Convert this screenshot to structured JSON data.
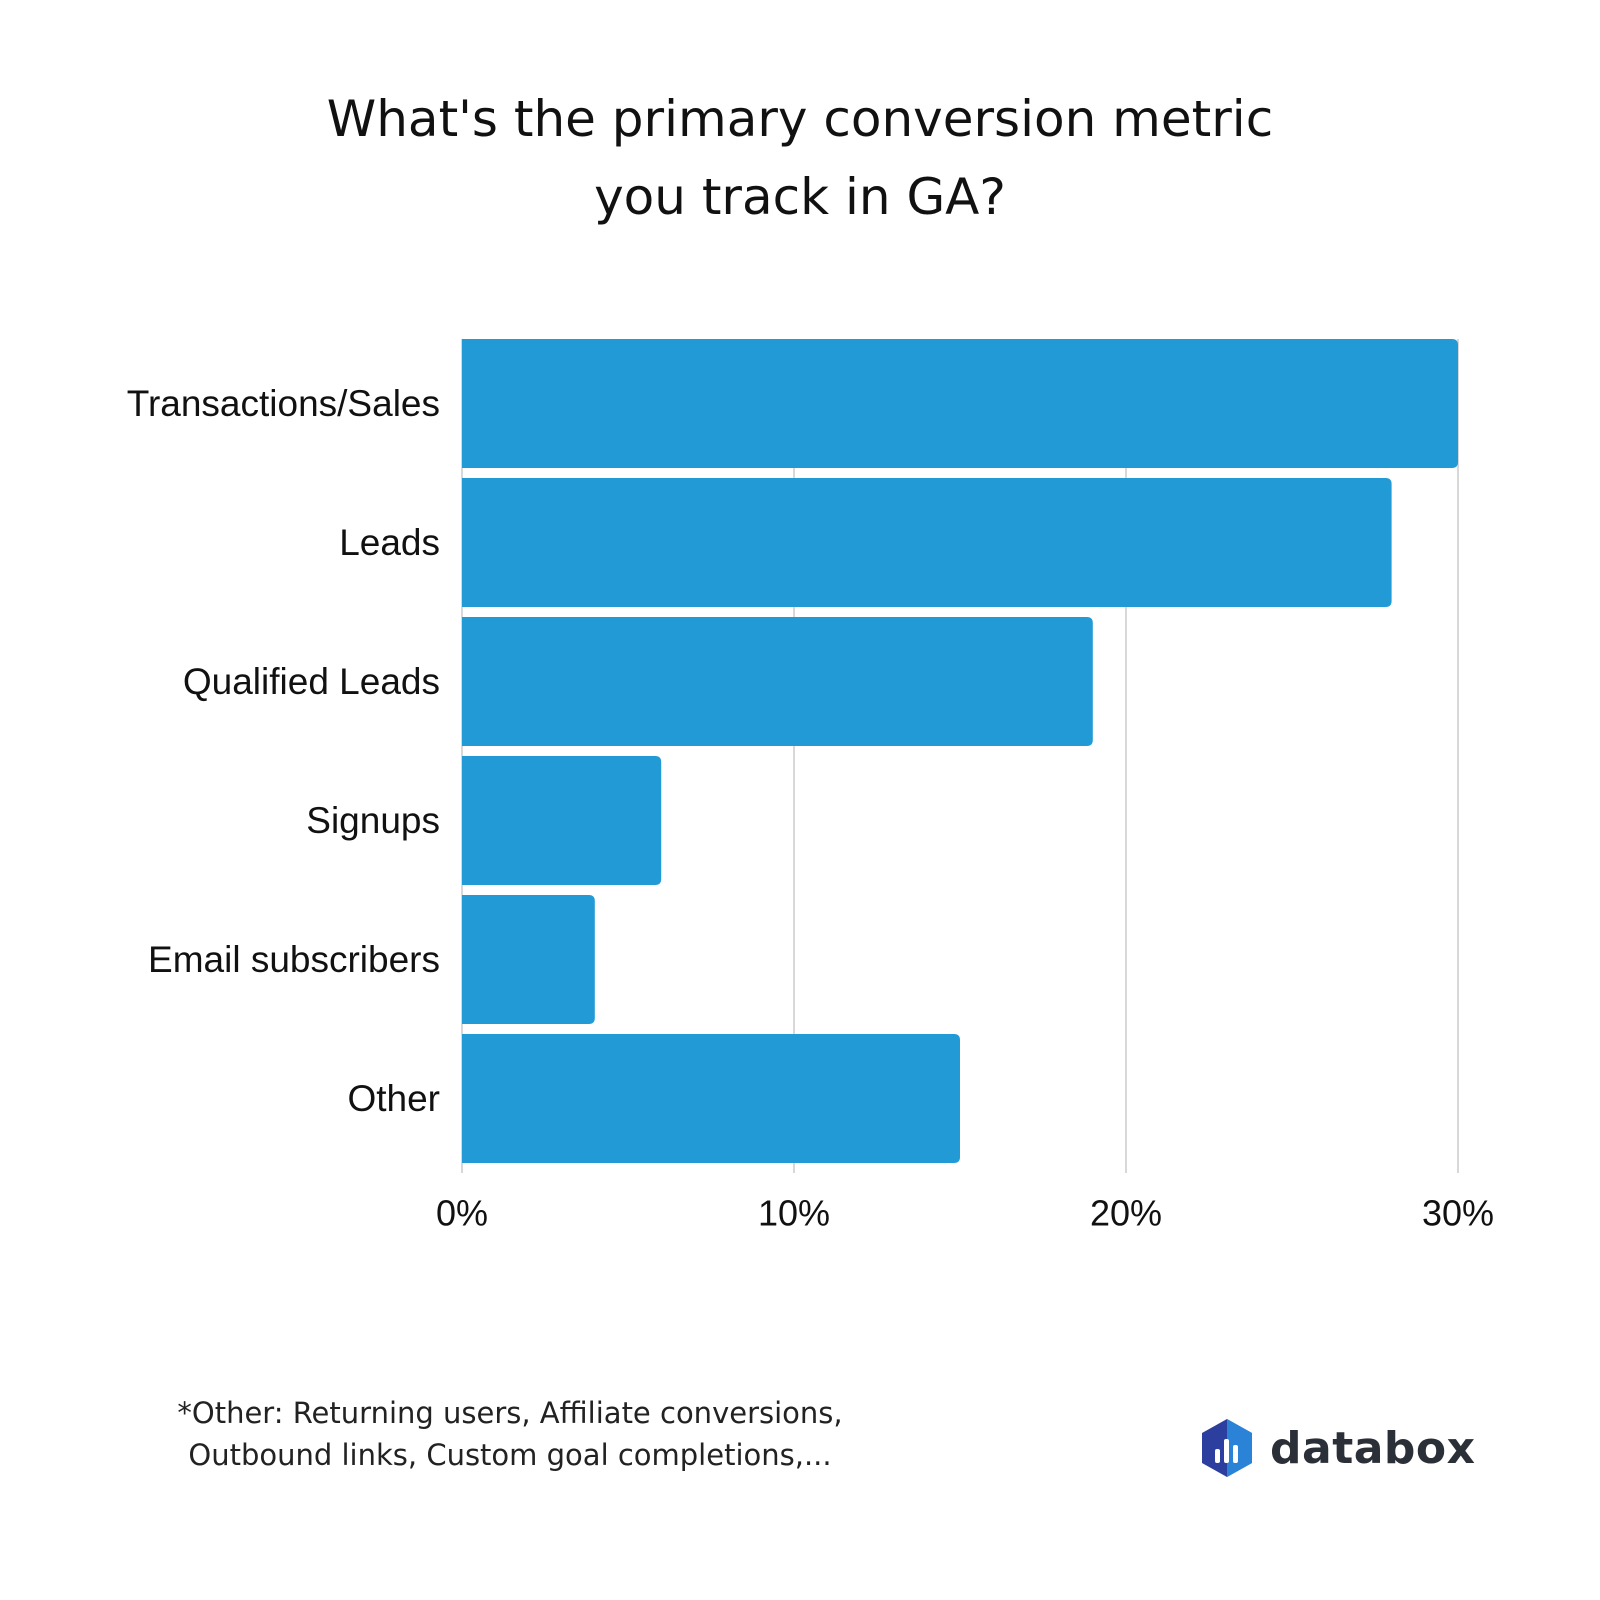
{
  "title_lines": [
    "What's the primary conversion metric",
    "you track in GA?"
  ],
  "chart_data": {
    "type": "bar",
    "orientation": "horizontal",
    "title": "What's the primary conversion metric you track in GA?",
    "categories": [
      "Transactions/Sales",
      "Leads",
      "Qualified Leads",
      "Signups",
      "Email subscribers",
      "Other"
    ],
    "values": [
      30,
      28,
      19,
      6,
      4,
      15
    ],
    "unit": "%",
    "xlim": [
      0,
      30
    ],
    "xticks": [
      0,
      10,
      20,
      30
    ],
    "xtick_labels": [
      "0%",
      "10%",
      "20%",
      "30%"
    ],
    "bar_color": "#219ad6",
    "grid": true
  },
  "footnote_lines": [
    "*Other: Returning users, Affiliate conversions,",
    "Outbound links, Custom goal completions,..."
  ],
  "logo": {
    "text": "databox",
    "colors": {
      "icon_dark": "#2d3f9e",
      "icon_light": "#2b8fe0",
      "text": "#2b2f38"
    }
  }
}
